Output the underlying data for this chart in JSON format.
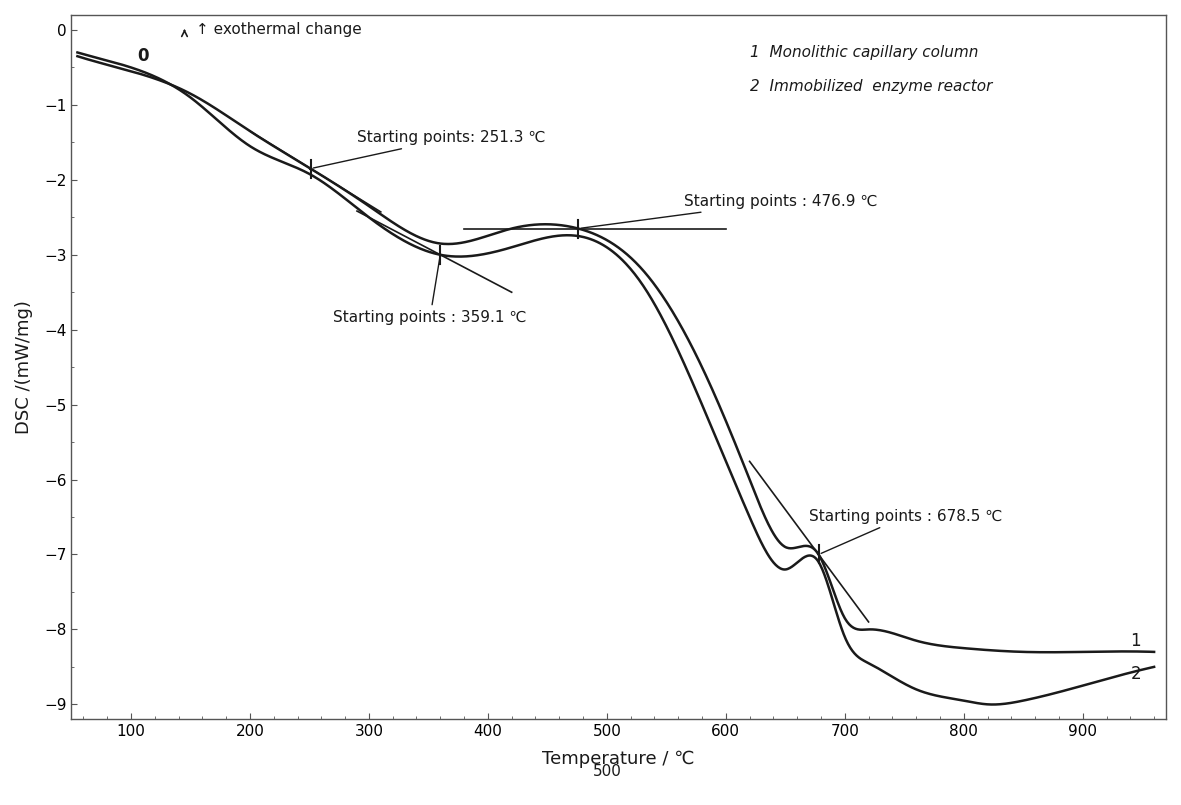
{
  "ylabel": "DSC /(mW/mg)",
  "xlabel": "Temperature / ℃",
  "xlim": [
    50,
    970
  ],
  "ylim": [
    -9.2,
    0.2
  ],
  "yticks": [
    0,
    -1,
    -2,
    -3,
    -4,
    -5,
    -6,
    -7,
    -8,
    -9
  ],
  "xticks": [
    100,
    200,
    300,
    400,
    500,
    600,
    700,
    800,
    900
  ],
  "background_color": "#ffffff",
  "line_color": "#1a1a1a",
  "annotation_251": "Starting points: 251.3 ℃",
  "annotation_359": "Starting points : 359.1 ℃",
  "annotation_477": "Starting points : 476.9 ℃",
  "annotation_678": "Starting points : 678.5 ℃",
  "label1": "1  Monolithic capillary column",
  "label2": "2  Immobilized  enzyme reactor",
  "exothermal_label": "↑ exothermal change",
  "zero_label": "0",
  "curve1_label": "1",
  "curve2_label": "2"
}
